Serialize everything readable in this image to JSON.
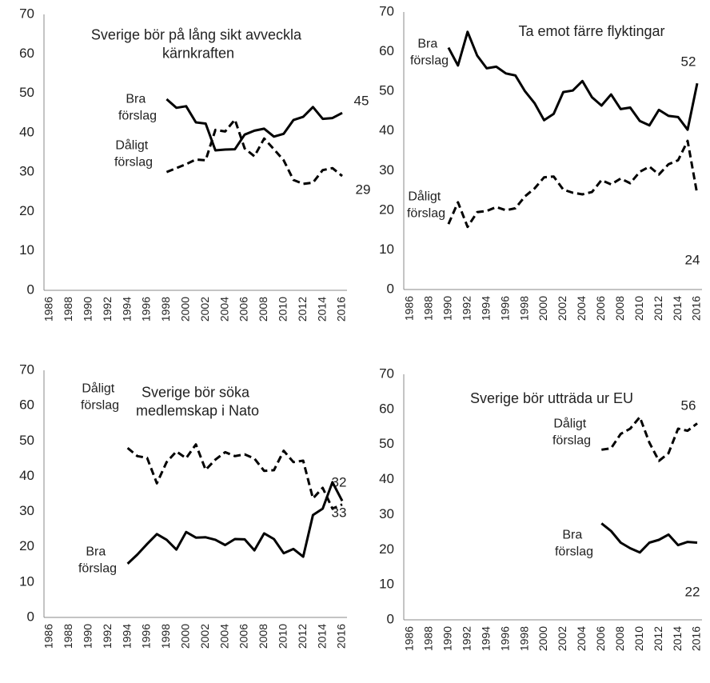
{
  "chart_data": [
    {
      "type": "line",
      "title": "Sverige bör på lång sikt avveckla kärnkraften",
      "x": [
        1998,
        1999,
        2000,
        2001,
        2002,
        2003,
        2004,
        2005,
        2006,
        2007,
        2008,
        2009,
        2010,
        2011,
        2012,
        2013,
        2014,
        2015,
        2016
      ],
      "series": [
        {
          "name": "Bra förslag",
          "color": "#000000",
          "dash": "solid",
          "values": [
            48.5,
            46.3,
            46.7,
            42.6,
            42.3,
            35.5,
            35.7,
            35.8,
            39.5,
            40.5,
            41,
            39,
            39.7,
            43.2,
            44,
            46.5,
            43.5,
            43.7,
            45
          ]
        },
        {
          "name": "Dåligt förslag",
          "color": "#000000",
          "dash": "dashed",
          "values": [
            30,
            31,
            32,
            33.2,
            33,
            40.7,
            40.3,
            43.3,
            36,
            34,
            38.5,
            35.8,
            33,
            28,
            27,
            27.3,
            30.5,
            31,
            29
          ]
        }
      ],
      "xlim": [
        1986,
        2016
      ],
      "xticks": [
        1986,
        1988,
        1990,
        1992,
        1994,
        1996,
        1998,
        2000,
        2002,
        2004,
        2006,
        2008,
        2010,
        2012,
        2014,
        2016
      ],
      "ylim": [
        0,
        70
      ],
      "yticks": [
        0,
        10,
        20,
        30,
        40,
        50,
        60,
        70
      ],
      "label_last": true
    },
    {
      "type": "line",
      "title": "Ta emot färre flyktingar",
      "x": [
        1990,
        1991,
        1992,
        1993,
        1994,
        1995,
        1996,
        1997,
        1998,
        1999,
        2000,
        2001,
        2002,
        2003,
        2004,
        2005,
        2006,
        2007,
        2008,
        2009,
        2010,
        2011,
        2012,
        2013,
        2014,
        2015,
        2016
      ],
      "series": [
        {
          "name": "Bra förslag",
          "color": "#000000",
          "dash": "solid",
          "values": [
            61,
            56.5,
            65,
            59,
            55.8,
            56.2,
            54.5,
            54,
            50,
            47,
            42.7,
            44.3,
            49.8,
            50.2,
            52.6,
            48.5,
            46.4,
            49.2,
            45.5,
            45.9,
            42.5,
            41.4,
            45.3,
            43.8,
            43.5,
            40.3,
            52
          ]
        },
        {
          "name": "Dåligt förslag",
          "color": "#000000",
          "dash": "dashed",
          "values": [
            16.5,
            22,
            15.8,
            19.5,
            19.8,
            20.8,
            20,
            20.5,
            23.5,
            25.5,
            28.3,
            28.5,
            25.2,
            24.4,
            24,
            24.6,
            27.6,
            26.5,
            28,
            26.8,
            29.7,
            31,
            29,
            31.6,
            32.6,
            37.5,
            24
          ]
        }
      ],
      "xlim": [
        1986,
        2016
      ],
      "xticks": [
        1986,
        1988,
        1990,
        1992,
        1994,
        1996,
        1998,
        2000,
        2002,
        2004,
        2006,
        2008,
        2010,
        2012,
        2014,
        2016
      ],
      "ylim": [
        0,
        70
      ],
      "yticks": [
        0,
        10,
        20,
        30,
        40,
        50,
        60,
        70
      ],
      "label_last": true
    },
    {
      "type": "line",
      "title": "Sverige bör söka medlemskap i Nato",
      "x": [
        1994,
        1995,
        1996,
        1997,
        1998,
        1999,
        2000,
        2001,
        2002,
        2003,
        2004,
        2005,
        2006,
        2007,
        2008,
        2009,
        2010,
        2011,
        2012,
        2013,
        2014,
        2015,
        2016
      ],
      "series": [
        {
          "name": "Dåligt förslag",
          "color": "#000000",
          "dash": "dashed",
          "values": [
            48,
            45.7,
            45.2,
            38,
            44,
            47,
            45.1,
            49,
            41.8,
            44.7,
            46.8,
            45.7,
            46.2,
            45,
            41.5,
            41.7,
            47.2,
            44,
            44.4,
            33.7,
            36.7,
            30.8,
            32
          ]
        },
        {
          "name": "Bra förslag",
          "color": "#000000",
          "dash": "solid",
          "values": [
            15.2,
            17.8,
            20.8,
            23.6,
            22,
            19.2,
            24.2,
            22.6,
            22.7,
            22,
            20.5,
            22.2,
            22.1,
            19,
            23.8,
            22.2,
            18.2,
            19.4,
            17.2,
            29,
            30.8,
            38.3,
            33
          ]
        }
      ],
      "xlim": [
        1986,
        2016
      ],
      "xticks": [
        1986,
        1988,
        1990,
        1992,
        1994,
        1996,
        1998,
        2000,
        2002,
        2004,
        2006,
        2008,
        2010,
        2012,
        2014,
        2016
      ],
      "ylim": [
        0,
        70
      ],
      "yticks": [
        0,
        10,
        20,
        30,
        40,
        50,
        60,
        70
      ],
      "label_last": true
    },
    {
      "type": "line",
      "title": "Sverige bör utträda ur EU",
      "x": [
        2006,
        2007,
        2008,
        2009,
        2010,
        2011,
        2012,
        2013,
        2014,
        2015,
        2016
      ],
      "series": [
        {
          "name": "Dåligt förslag",
          "color": "#000000",
          "dash": "dashed",
          "values": [
            48.5,
            48.9,
            53,
            54.5,
            57.8,
            50.5,
            45.3,
            47.5,
            54.5,
            53.9,
            56
          ]
        },
        {
          "name": "Bra förslag",
          "color": "#000000",
          "dash": "solid",
          "values": [
            27.5,
            25.3,
            22,
            20.4,
            19.2,
            22,
            22.8,
            24.3,
            21.3,
            22.2,
            22
          ]
        }
      ],
      "xlim": [
        1986,
        2016
      ],
      "xticks": [
        1986,
        1988,
        1990,
        1992,
        1994,
        1996,
        1998,
        2000,
        2002,
        2004,
        2006,
        2008,
        2010,
        2012,
        2014,
        2016
      ],
      "ylim": [
        0,
        70
      ],
      "yticks": [
        0,
        10,
        20,
        30,
        40,
        50,
        60,
        70
      ],
      "label_last": true
    }
  ]
}
